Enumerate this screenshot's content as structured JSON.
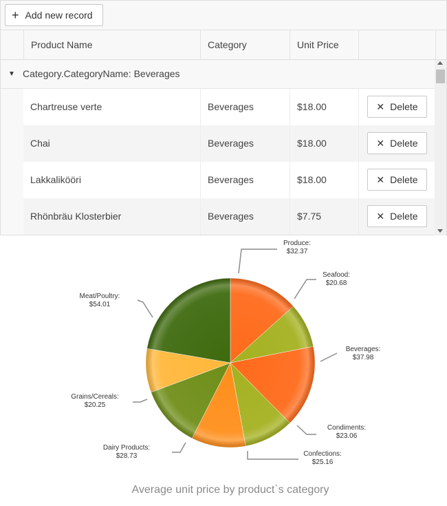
{
  "toolbar": {
    "add_label": "Add new record"
  },
  "header": {
    "product_name": "Product Name",
    "category": "Category",
    "unit_price": "Unit Price"
  },
  "group": {
    "text": "Category.CategoryName: Beverages"
  },
  "rows": [
    {
      "product": "Chartreuse verte",
      "category": "Beverages",
      "price": "$18.00",
      "delete": "Delete"
    },
    {
      "product": "Chai",
      "category": "Beverages",
      "price": "$18.00",
      "delete": "Delete"
    },
    {
      "product": "Lakkalikööri",
      "category": "Beverages",
      "price": "$18.00",
      "delete": "Delete"
    },
    {
      "product": "Rhönbräu Klosterbier",
      "category": "Beverages",
      "price": "$7.75",
      "delete": "Delete"
    }
  ],
  "chart_data": {
    "type": "pie",
    "title": "Average unit price by product`s category",
    "slices": [
      {
        "category": "Produce",
        "value": 32.37,
        "label": "$32.37",
        "color": "#ff6a1a"
      },
      {
        "category": "Seafood",
        "value": 20.68,
        "label": "$20.68",
        "color": "#a4b11f"
      },
      {
        "category": "Beverages",
        "value": 37.98,
        "label": "$37.98",
        "color": "#ff6a1a"
      },
      {
        "category": "Condiments",
        "value": 23.06,
        "label": "$23.06",
        "color": "#a4b11f"
      },
      {
        "category": "Confections",
        "value": 25.16,
        "label": "$25.16",
        "color": "#ff8e1a"
      },
      {
        "category": "Dairy Products",
        "value": 28.73,
        "label": "$28.73",
        "color": "#6f8e18"
      },
      {
        "category": "Grains/Cereals",
        "value": 20.25,
        "label": "$20.25",
        "color": "#ffb73a"
      },
      {
        "category": "Meat/Poultry",
        "value": 54.01,
        "label": "$54.01",
        "color": "#3e6a0e"
      }
    ]
  }
}
